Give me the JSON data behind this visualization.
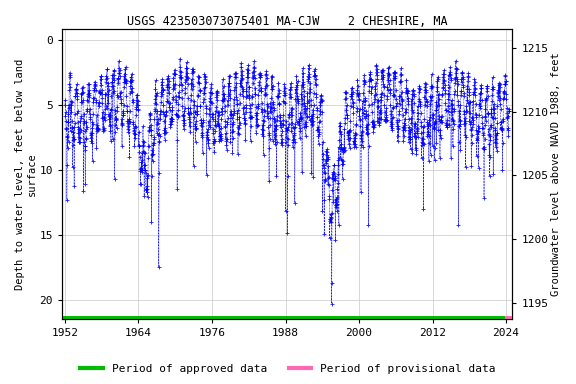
{
  "title": "USGS 423503073075401 MA-CJW    2 CHESHIRE, MA",
  "ylabel_left": "Depth to water level, feet below land\nsurface",
  "ylabel_right": "Groundwater level above NAVD 1988, feet",
  "ylim_left": [
    21.5,
    -0.8
  ],
  "ylim_right": [
    1193.7,
    1216.5
  ],
  "xlim": [
    1951.5,
    2025
  ],
  "xticks": [
    1952,
    1964,
    1976,
    1988,
    2000,
    2012,
    2024
  ],
  "yticks_left": [
    0,
    5,
    10,
    15,
    20
  ],
  "yticks_right": [
    1195,
    1200,
    1205,
    1210,
    1215
  ],
  "data_color": "#0000ff",
  "grid_color": "#c8c8c8",
  "approved_color": "#00bb00",
  "provisional_color": "#ff69b4",
  "background_color": "#ffffff",
  "title_fontsize": 8.5,
  "axis_label_fontsize": 7.5,
  "tick_fontsize": 8,
  "legend_fontsize": 8,
  "seed": 12345,
  "land_surface_elev": 1215.5,
  "approved_xstart": 1951.5,
  "approved_xend": 2023.8,
  "provisional_xstart": 2023.8,
  "provisional_xend": 2025
}
